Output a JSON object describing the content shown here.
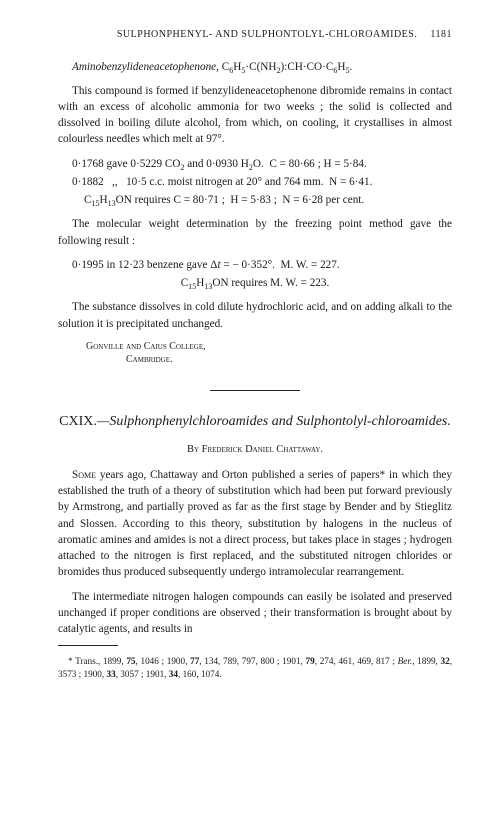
{
  "running_head": {
    "text": "SULPHONPHENYL- AND SULPHONTOLYL-CHLOROAMIDES.",
    "page": "1181"
  },
  "compound": {
    "name_italic": "Aminobenzylideneacetophenone",
    "formula_html": "C<sub>6</sub>H<sub>5</sub>·C(NH<sub>2</sub>):CH·CO·C<sub>6</sub>H<sub>5</sub>."
  },
  "para1": "This compound is formed if benzylideneacetophenone dibromide remains in contact with an excess of alcoholic ammonia for two weeks ; the solid is collected and dissolved in boiling dilute alcohol, from which, on cooling, it crystallises in almost colourless needles which melt at 97°.",
  "analysis": {
    "line1_html": "0·1768 gave 0·5229 CO<sub>2</sub> and 0·0930 H<sub>2</sub>O.&nbsp;&nbsp;C = 80·66 ; H = 5·84.",
    "line2_html": "0·1882&nbsp;&nbsp;&nbsp;,,&nbsp;&nbsp;&nbsp;10·5 c.c. moist nitrogen at 20° and 764 mm.&nbsp;&nbsp;N = 6·41.",
    "req_html": "C<sub>15</sub>H<sub>13</sub>ON requires C = 80·71 ;&nbsp; H = 5·83 ;&nbsp; N = 6·28 per cent."
  },
  "para2": "The molecular weight determination by the freezing point method gave the following result :",
  "mw": {
    "line_html": "0·1995 in 12·23 benzene gave Δ<i>t</i> = − 0·352°.&nbsp;&nbsp;M. W. = 227.",
    "req_html": "C<sub>15</sub>H<sub>13</sub>ON requires M. W. = 223."
  },
  "para3": "The substance dissolves in cold dilute hydrochloric acid, and on adding alkali to the solution it is precipitated unchanged.",
  "affiliation": {
    "line1": "Gonville and Caius College,",
    "line2": "Cambridge."
  },
  "article": {
    "number": "CXIX.",
    "title_italic": "—Sulphonphenylchloroamides and Sulphontolyl-chloroamides.",
    "author": "By Frederick Daniel Chattaway."
  },
  "article_body": {
    "p1_html": "<span class=\"firstword\">Some</span> years ago, Chattaway and Orton published a series of papers* in which they established the truth of a theory of substitution which had been put forward previously by Armstrong, and partially proved as far as the first stage by Bender and by Stieglitz and Slossen. According to this theory, substitution by halogens in the nucleus of aromatic amines and amides is not a direct process, but takes place in stages ; hydrogen attached to the nitrogen is first replaced, and the substituted nitrogen chlorides or bromides thus produced subsequently undergo intramolecular rearrangement.",
    "p2": "The intermediate nitrogen halogen compounds can easily be isolated and preserved unchanged if proper conditions are observed ; their transformation is brought about by catalytic agents, and results in"
  },
  "footnote_html": "* Trans., 1899, <b>75</b>, 1046 ; 1900, <b>77</b>, 134, 789, 797, 800 ; 1901, <b>79</b>, 274, 461, 469, 817 ; <i>Ber.</i>, 1899, <b>32</b>, 3573 ; 1900, <b>33</b>, 3057 ; 1901, <b>34</b>, 160, 1074."
}
